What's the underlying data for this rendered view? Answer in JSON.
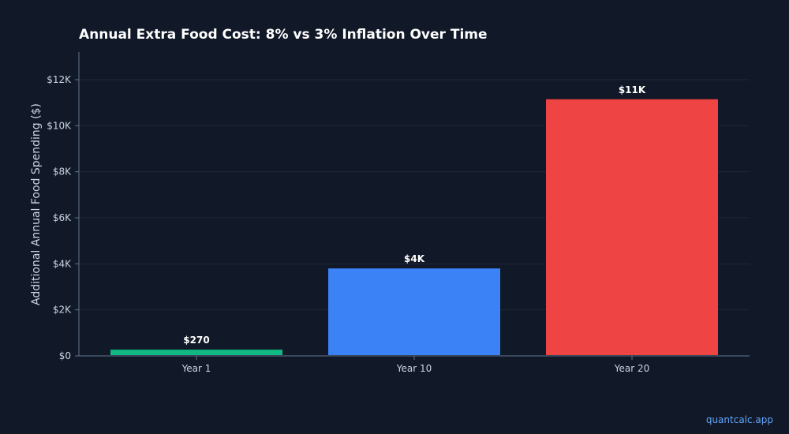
{
  "chart_data": {
    "type": "bar",
    "title": "Annual Extra Food Cost: 8% vs 3% Inflation Over Time",
    "xlabel": "",
    "ylabel": "Additional Annual Food Spending ($)",
    "categories": [
      "Year 1",
      "Year 10",
      "Year 20"
    ],
    "values": [
      270,
      3800,
      11150
    ],
    "data_labels": [
      "$270",
      "$4K",
      "$11K"
    ],
    "bar_colors": [
      "#10b981",
      "#3b82f6",
      "#ef4444"
    ],
    "ylim": [
      0,
      13200
    ],
    "yticks": [
      0,
      2000,
      4000,
      6000,
      8000,
      10000,
      12000
    ],
    "ytick_labels": [
      "$0",
      "$2K",
      "$4K",
      "$6K",
      "$8K",
      "$10K",
      "$12K"
    ],
    "grid": true,
    "legend": "none"
  },
  "colors": {
    "background": "#111827",
    "grid": "#1f2937",
    "axis": "#64748b",
    "text": "#cbd5e1",
    "watermark": "#60a5fa"
  },
  "watermark": "quantcalc.app"
}
